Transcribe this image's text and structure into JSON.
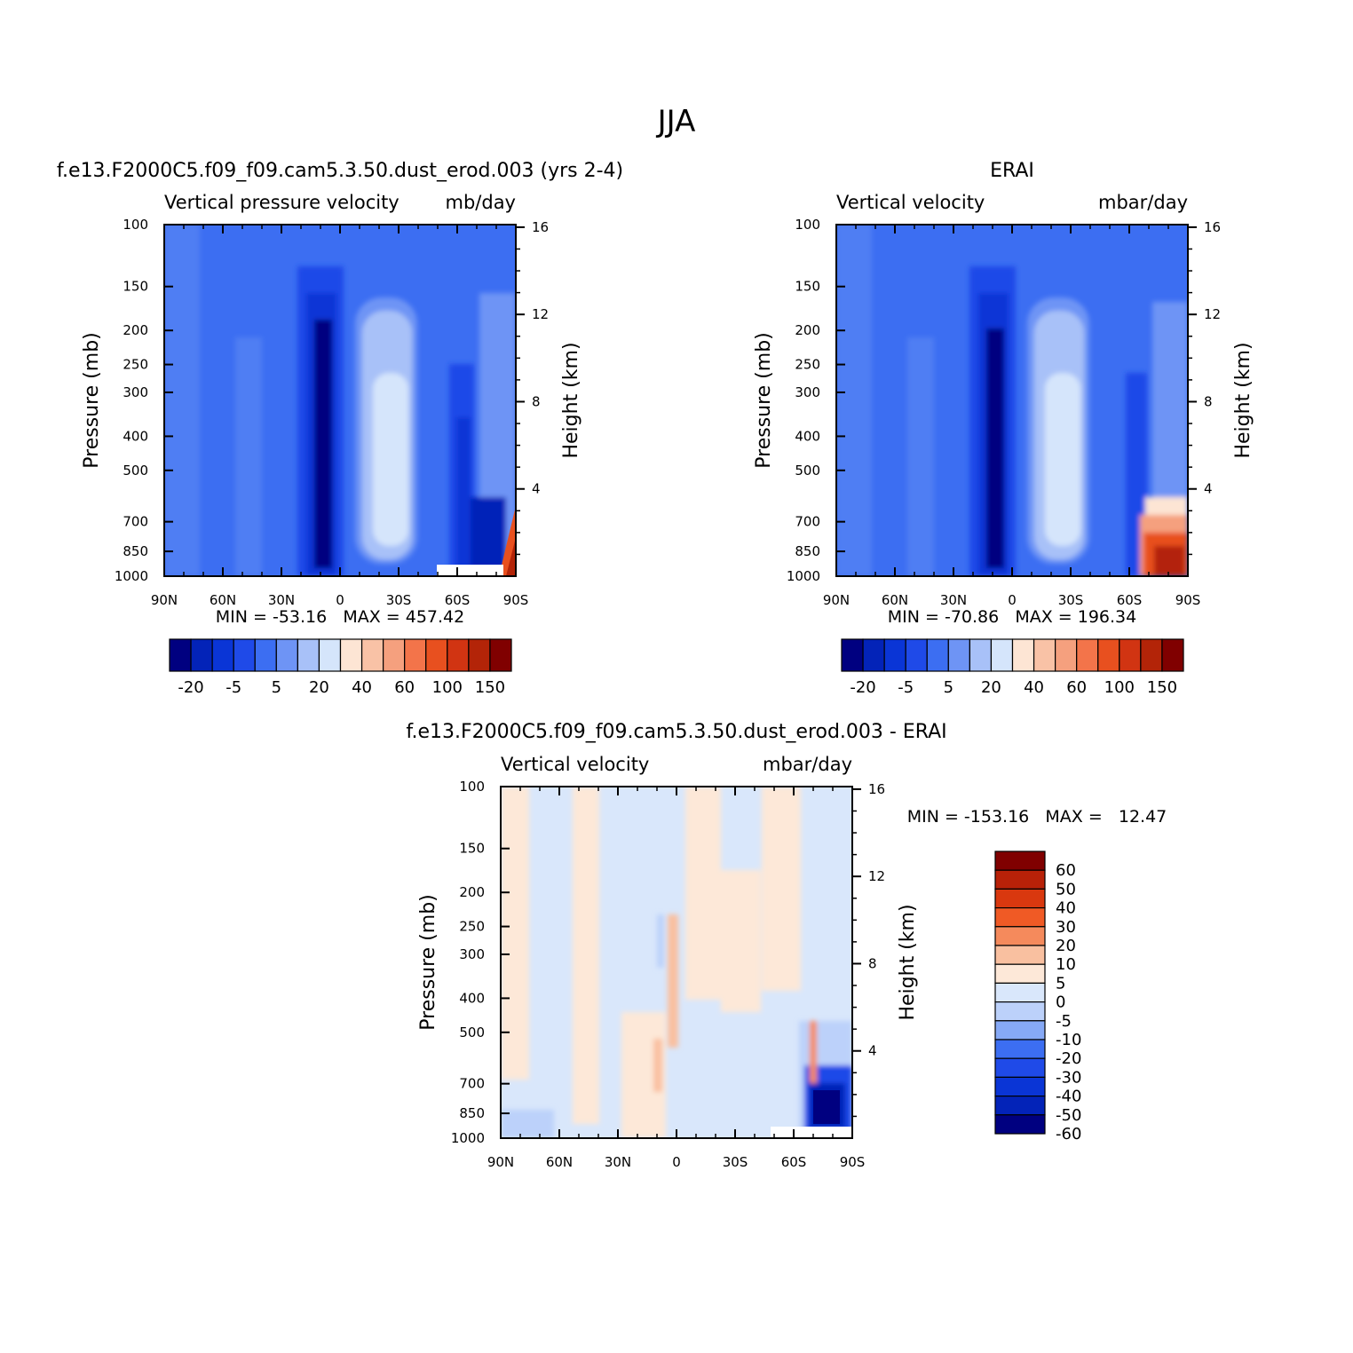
{
  "figure": {
    "title": "JJA"
  },
  "colors": {
    "main_levels": [
      "#000080",
      "#0323b8",
      "#0a35d6",
      "#1f4ae8",
      "#3c6ef2",
      "#6e94f5",
      "#a8c1f8",
      "#d5e5fb",
      "#fde5d4",
      "#f9c2a6",
      "#f5a07e",
      "#f3744a",
      "#e8501f",
      "#d13412",
      "#b32408",
      "#800000"
    ],
    "diff_levels": [
      "#000080",
      "#0323b8",
      "#0a35d6",
      "#1f4ae8",
      "#3c6ef2",
      "#86a9f6",
      "#bcd1fa",
      "#d9e7fb",
      "#fde8d8",
      "#f9c0a0",
      "#f58a5c",
      "#f05a25",
      "#d9380f",
      "#b82108",
      "#800000"
    ]
  },
  "panels": [
    {
      "id": "model",
      "panel_title": "f.e13.F2000C5.f09_f09.cam5.3.50.dust_erod.003 (yrs 2-4)",
      "left_label": "Vertical pressure velocity",
      "right_label": "mb/day",
      "stats": "MIN = -53.16   MAX = 457.42",
      "y_axis_label": "Pressure (mb)",
      "y2_axis_label": "Height (km)"
    },
    {
      "id": "erai",
      "panel_title": "ERAI",
      "left_label": "Vertical velocity",
      "right_label": "mbar/day",
      "stats": "MIN = -70.86   MAX = 196.34",
      "y_axis_label": "Pressure (mb)",
      "y2_axis_label": "Height (km)"
    },
    {
      "id": "diff",
      "panel_title": "f.e13.F2000C5.f09_f09.cam5.3.50.dust_erod.003 - ERAI",
      "left_label": "Vertical velocity",
      "right_label": "mbar/day",
      "stats": "MIN = -153.16   MAX =   12.47",
      "y_axis_label": "Pressure (mb)",
      "y2_axis_label": "Height (km)"
    }
  ],
  "axes": {
    "x_ticks": [
      "90N",
      "60N",
      "30N",
      "0",
      "30S",
      "60S",
      "90S"
    ],
    "x_values": [
      90,
      60,
      30,
      0,
      -30,
      -60,
      -90
    ],
    "p_ticks": [
      100,
      150,
      200,
      250,
      300,
      400,
      500,
      700,
      850,
      1000
    ],
    "p_tick_labels": [
      "100",
      "150",
      "200",
      "250",
      "300",
      "400",
      "500",
      "700",
      "850",
      "1000"
    ],
    "z_ticks": [
      16,
      12,
      8,
      4
    ],
    "z_tick_labels": [
      "16",
      "12",
      "8",
      "4"
    ]
  },
  "colorbars": {
    "main_labels": [
      "-20",
      "-5",
      "5",
      "20",
      "40",
      "60",
      "100",
      "150"
    ],
    "diff_labels": [
      "60",
      "50",
      "40",
      "30",
      "20",
      "10",
      "5",
      "0",
      "-5",
      "-10",
      "-20",
      "-30",
      "-40",
      "-50",
      "-60"
    ]
  },
  "chart_data": [
    {
      "type": "heatmap",
      "title": "f.e13.F2000C5.f09_f09.cam5.3.50.dust_erod.003 (yrs 2-4)",
      "xlabel": "",
      "ylabel": "Pressure (mb)",
      "y2label": "Height (km)",
      "xlim": [
        90,
        -90
      ],
      "ylim": [
        1000,
        100
      ],
      "y_scale": "log",
      "units": "mb/day",
      "min": -53.16,
      "max": 457.42,
      "x": [
        90,
        70,
        50,
        30,
        10,
        0,
        -10,
        -30,
        -50,
        -70,
        -90
      ],
      "y": [
        1000,
        850,
        700,
        500,
        300,
        200,
        150,
        100
      ],
      "values": [
        [
          -5,
          -8,
          -10,
          -15,
          -45,
          -30,
          -10,
          0,
          -10,
          -40,
          150
        ],
        [
          -8,
          -10,
          -10,
          -12,
          -45,
          -30,
          -10,
          2,
          -10,
          -30,
          60
        ],
        [
          -10,
          -10,
          -12,
          -15,
          -50,
          -30,
          -10,
          5,
          -12,
          -30,
          10
        ],
        [
          -12,
          -12,
          -12,
          -15,
          -50,
          -25,
          -10,
          5,
          -15,
          -30,
          -10
        ],
        [
          -12,
          -12,
          -12,
          -15,
          -45,
          -20,
          -10,
          0,
          -12,
          -20,
          -10
        ],
        [
          -12,
          -12,
          -10,
          -12,
          -35,
          -15,
          -10,
          -5,
          -10,
          -12,
          -8
        ],
        [
          -10,
          -10,
          -8,
          -10,
          -20,
          -12,
          -10,
          -10,
          -10,
          -10,
          -8
        ],
        [
          -10,
          -10,
          -8,
          -8,
          -12,
          -10,
          -10,
          -10,
          -10,
          -10,
          -8
        ]
      ]
    },
    {
      "type": "heatmap",
      "title": "ERAI",
      "xlabel": "",
      "ylabel": "Pressure (mb)",
      "y2label": "Height (km)",
      "xlim": [
        90,
        -90
      ],
      "ylim": [
        1000,
        100
      ],
      "y_scale": "log",
      "units": "mbar/day",
      "min": -70.86,
      "max": 196.34,
      "x": [
        90,
        70,
        50,
        30,
        10,
        0,
        -10,
        -30,
        -50,
        -70,
        -90
      ],
      "y": [
        1000,
        850,
        700,
        500,
        300,
        200,
        150,
        100
      ],
      "values": [
        [
          -5,
          -8,
          -10,
          -15,
          -45,
          -30,
          -10,
          0,
          -10,
          100,
          150
        ],
        [
          -8,
          -10,
          -10,
          -12,
          -45,
          -30,
          -10,
          2,
          -10,
          60,
          100
        ],
        [
          -10,
          -10,
          -12,
          -15,
          -50,
          -30,
          -10,
          5,
          -12,
          0,
          10
        ],
        [
          -12,
          -12,
          -12,
          -15,
          -50,
          -25,
          -10,
          5,
          -15,
          -20,
          0
        ],
        [
          -12,
          -12,
          -12,
          -15,
          -45,
          -20,
          -10,
          0,
          -12,
          -15,
          -5
        ],
        [
          -12,
          -12,
          -10,
          -12,
          -35,
          -15,
          -10,
          -5,
          -10,
          -12,
          -8
        ],
        [
          -10,
          -10,
          -8,
          -10,
          -20,
          -12,
          -10,
          -10,
          -10,
          -10,
          -8
        ],
        [
          -10,
          -10,
          -8,
          -8,
          -12,
          -10,
          -10,
          -10,
          -10,
          -10,
          -8
        ]
      ]
    },
    {
      "type": "heatmap",
      "title": "f.e13.F2000C5.f09_f09.cam5.3.50.dust_erod.003 - ERAI",
      "xlabel": "",
      "ylabel": "Pressure (mb)",
      "y2label": "Height (km)",
      "xlim": [
        90,
        -90
      ],
      "ylim": [
        1000,
        100
      ],
      "y_scale": "log",
      "units": "mbar/day",
      "min": -153.16,
      "max": 12.47,
      "x": [
        90,
        70,
        50,
        30,
        10,
        0,
        -10,
        -30,
        -50,
        -70,
        -90
      ],
      "y": [
        1000,
        850,
        700,
        500,
        300,
        200,
        150,
        100
      ],
      "values": [
        [
          -5,
          -3,
          0,
          3,
          2,
          0,
          2,
          0,
          -2,
          -60,
          -60
        ],
        [
          -3,
          -2,
          0,
          3,
          1,
          0,
          1,
          0,
          -2,
          -60,
          -60
        ],
        [
          -2,
          -1,
          0,
          2,
          1,
          0,
          1,
          0,
          -1,
          -20,
          -20
        ],
        [
          2,
          -1,
          0,
          1,
          -1,
          2,
          1,
          0,
          -1,
          2,
          -2
        ],
        [
          2,
          -1,
          0,
          1,
          -2,
          2,
          2,
          0,
          -1,
          -1,
          -1
        ],
        [
          2,
          -1,
          1,
          -1,
          -1,
          2,
          2,
          -1,
          1,
          -1,
          -1
        ],
        [
          2,
          -1,
          1,
          -1,
          -1,
          1,
          2,
          -1,
          2,
          -1,
          -1
        ],
        [
          2,
          -1,
          1,
          -1,
          -1,
          1,
          -1,
          -1,
          2,
          -1,
          -1
        ]
      ],
      "colorbar_levels": [
        -60,
        -50,
        -40,
        -30,
        -20,
        -10,
        -5,
        0,
        5,
        10,
        20,
        30,
        40,
        50,
        60
      ]
    }
  ]
}
